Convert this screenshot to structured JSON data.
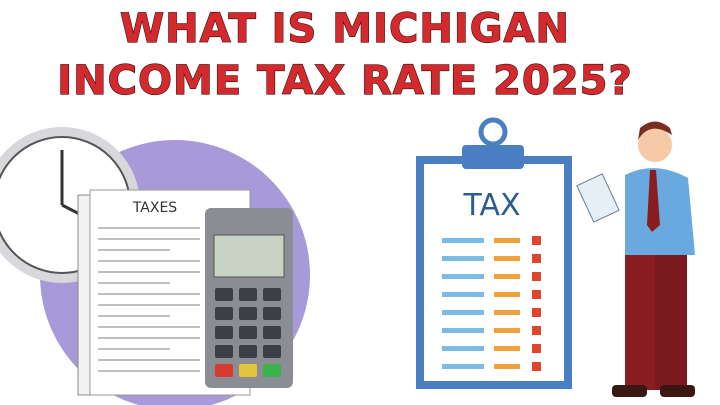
{
  "header": {
    "title_lines": [
      "WHAT IS MICHIGAN",
      "INCOME TAX RATE 2025?"
    ]
  },
  "document": {
    "label": "TAXES"
  },
  "clipboard": {
    "label": "TAX"
  }
}
